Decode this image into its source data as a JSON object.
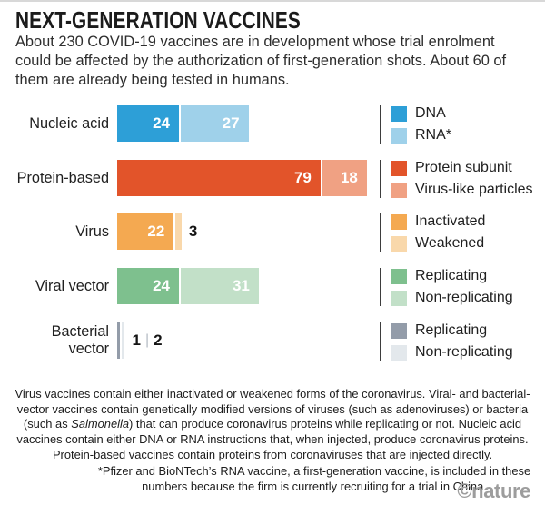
{
  "header": {
    "title": "NEXT-GENERATION VACCINES",
    "subtitle": "About 230 COVID-19 vaccines are in development whose trial enrolment could be affected by the authorization of first-generation shots. About 60 of them are already being tested in humans."
  },
  "chart_data": {
    "type": "bar",
    "orientation": "horizontal",
    "title": "NEXT-GENERATION VACCINES",
    "unit": "number of vaccines",
    "grid": false,
    "legend_position": "right",
    "categories": [
      "Nucleic acid",
      "Protein-based",
      "Virus",
      "Viral vector",
      "Bacterial vector"
    ],
    "rows": [
      {
        "category": "Nucleic acid",
        "segments": [
          {
            "name": "DNA",
            "value": 24,
            "color": "#2D9FD7",
            "value_label": "inside"
          },
          {
            "name": "RNA*",
            "value": 27,
            "color": "#9FD1EA",
            "value_label": "inside"
          }
        ]
      },
      {
        "category": "Protein-based",
        "segments": [
          {
            "name": "Protein subunit",
            "value": 79,
            "color": "#E2542A",
            "value_label": "inside"
          },
          {
            "name": "Virus-like particles",
            "value": 18,
            "color": "#F0A183",
            "value_label": "inside"
          }
        ]
      },
      {
        "category": "Virus",
        "segments": [
          {
            "name": "Inactivated",
            "value": 22,
            "color": "#F4A951",
            "value_label": "inside"
          },
          {
            "name": "Weakened",
            "value": 3,
            "color": "#F9D8AB",
            "value_label": "outside"
          }
        ]
      },
      {
        "category": "Viral vector",
        "segments": [
          {
            "name": "Replicating",
            "value": 24,
            "color": "#7EC08E",
            "value_label": "inside"
          },
          {
            "name": "Non-replicating",
            "value": 31,
            "color": "#C2E0C8",
            "value_label": "inside"
          }
        ]
      },
      {
        "category": "Bacterial vector",
        "segments": [
          {
            "name": "Replicating",
            "value": 1,
            "color": "#939CA9",
            "value_label": "outside"
          },
          {
            "name": "Non-replicating",
            "value": 2,
            "color": "#E3E8EC",
            "value_label": "outside"
          }
        ]
      }
    ],
    "legend_groups": [
      {
        "items": [
          {
            "label": "DNA",
            "color": "#2D9FD7"
          },
          {
            "label": "RNA*",
            "color": "#9FD1EA"
          }
        ]
      },
      {
        "items": [
          {
            "label": "Protein subunit",
            "color": "#E2542A"
          },
          {
            "label": "Virus-like particles",
            "color": "#F0A183"
          }
        ]
      },
      {
        "items": [
          {
            "label": "Inactivated",
            "color": "#F4A951"
          },
          {
            "label": "Weakened",
            "color": "#F9D8AB"
          }
        ]
      },
      {
        "items": [
          {
            "label": "Replicating",
            "color": "#7EC08E"
          },
          {
            "label": "Non-replicating",
            "color": "#C2E0C8"
          }
        ]
      },
      {
        "items": [
          {
            "label": "Replicating",
            "color": "#939CA9"
          },
          {
            "label": "Non-replicating",
            "color": "#E3E8EC"
          }
        ]
      }
    ]
  },
  "footer": {
    "note": {
      "before_italic": "Virus vaccines contain either inactivated or weakened forms of the coronavirus. Viral- and bacterial-vector vaccines contain genetically modified versions of viruses (such as adenoviruses) or bacteria (such as ",
      "italic": "Salmonella",
      "after_italic": ") that can produce coronavirus proteins while replicating or not. Nucleic acid vaccines contain either DNA or RNA instructions that, when injected, produce coronavirus proteins. Protein-based vaccines contain proteins from coronaviruses that are injected directly."
    },
    "footnote": "*Pfizer and BioNTech’s RNA vaccine, a first-generation vaccine, is included in these numbers because the firm is currently recruiting for a trial in China.",
    "credit": "©nature"
  }
}
